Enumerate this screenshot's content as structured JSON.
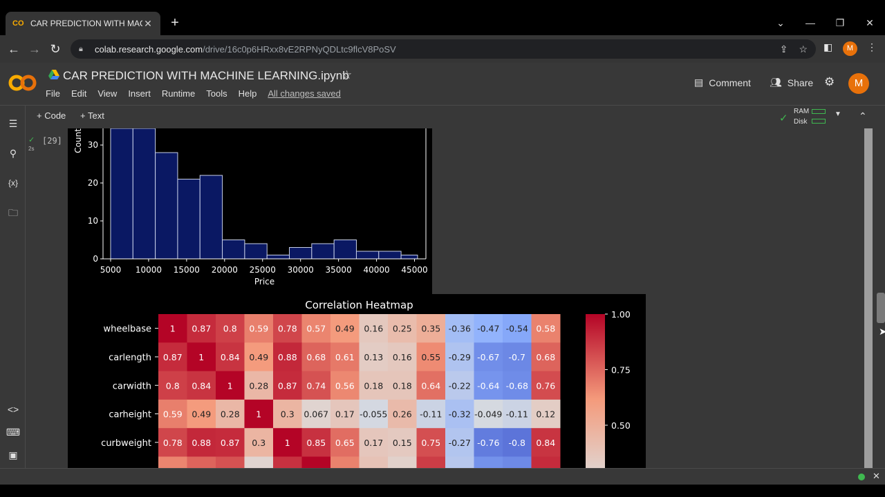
{
  "browser": {
    "tab_title": "CAR PREDICTION WITH MACHINE LEARNING.ipynb - Colaboratory",
    "tab_close": "✕",
    "new_tab": "+",
    "url_host": "colab.research.google.com",
    "url_path": "/drive/16c0p6HRxx8vE2RPNyQDLtc9flcV8PoSV",
    "profile_initial": "M"
  },
  "colab": {
    "notebook_title": "CAR PREDICTION WITH MACHINE LEARNING.ipynb",
    "menu": [
      "File",
      "Edit",
      "View",
      "Insert",
      "Runtime",
      "Tools",
      "Help"
    ],
    "save_status": "All changes saved",
    "comment_label": "Comment",
    "share_label": "Share",
    "avatar_initial": "M",
    "toolbar": {
      "code_label": "+ Code",
      "text_label": "+ Text",
      "ram_label": "RAM",
      "disk_label": "Disk"
    },
    "cell": {
      "exec_count": "[29]",
      "exec_time": "2s"
    }
  },
  "chart_data": [
    {
      "type": "bar",
      "title": "",
      "xlabel": "Price",
      "ylabel": "Count",
      "bin_edges": [
        5000,
        7941,
        10882,
        13823,
        16764,
        19705,
        22646,
        25587,
        28528,
        31469,
        34410,
        37351,
        40292,
        43233,
        45400
      ],
      "values": [
        35,
        35,
        28,
        21,
        22,
        5,
        4,
        1,
        3,
        4,
        5,
        2,
        2,
        1
      ],
      "xticks": [
        "5000",
        "10000",
        "15000",
        "20000",
        "25000",
        "30000",
        "35000",
        "40000",
        "45000"
      ],
      "yticks": [
        "0",
        "10",
        "20",
        "30"
      ],
      "ylim": [
        0,
        36
      ],
      "bar_color": "#0a1863"
    },
    {
      "type": "heatmap",
      "title": "Correlation Heatmap",
      "rows": [
        "wheelbase",
        "carlength",
        "carwidth",
        "carheight",
        "curbweight"
      ],
      "columns_visible": 14,
      "values": [
        [
          "1",
          "0.87",
          "0.8",
          "0.59",
          "0.78",
          "0.57",
          "0.49",
          "0.16",
          "0.25",
          "0.35",
          "-0.36",
          "-0.47",
          "-0.54",
          "0.58"
        ],
        [
          "0.87",
          "1",
          "0.84",
          "0.49",
          "0.88",
          "0.68",
          "0.61",
          "0.13",
          "0.16",
          "0.55",
          "-0.29",
          "-0.67",
          "-0.7",
          "0.68"
        ],
        [
          "0.8",
          "0.84",
          "1",
          "0.28",
          "0.87",
          "0.74",
          "0.56",
          "0.18",
          "0.18",
          "0.64",
          "-0.22",
          "-0.64",
          "-0.68",
          "0.76"
        ],
        [
          "0.59",
          "0.49",
          "0.28",
          "1",
          "0.3",
          "0.067",
          "0.17",
          "-0.055",
          "0.26",
          "-0.11",
          "-0.32",
          "-0.049",
          "-0.11",
          "0.12"
        ],
        [
          "0.78",
          "0.88",
          "0.87",
          "0.3",
          "1",
          "0.85",
          "0.65",
          "0.17",
          "0.15",
          "0.75",
          "-0.27",
          "-0.76",
          "-0.8",
          "0.84"
        ]
      ],
      "colorbar_ticks": [
        "1.00",
        "0.75",
        "0.50"
      ],
      "colormap": "coolwarm",
      "vmin": -1,
      "vmax": 1
    }
  ]
}
